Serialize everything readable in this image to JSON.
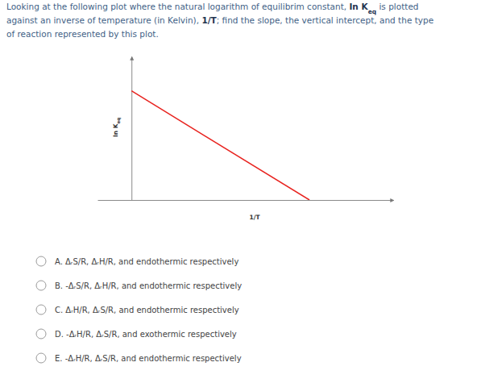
{
  "question": {
    "lines": [
      [
        {
          "text": "Looking at the following plot where the natural logarithm of equilibrim constant, ",
          "style": "normal"
        },
        {
          "text": "In K",
          "style": "bold"
        },
        {
          "text": "eq",
          "style": "bold-subscript"
        },
        {
          "text": " is plotted",
          "style": "normal"
        }
      ],
      [
        {
          "text": "against an inverse of temperature (in Kelvin), ",
          "style": "normal"
        },
        {
          "text": "1/T",
          "style": "bold"
        },
        {
          "text": "; find the slope, the vertical intercept, and the type",
          "style": "normal"
        }
      ],
      [
        {
          "text": "of reaction represented by this plot.",
          "style": "normal"
        }
      ]
    ]
  },
  "chart_data": {
    "type": "line",
    "xlabel": "1/T",
    "ylabel": {
      "text": "In K",
      "subscript": "eq"
    },
    "x": [
      0,
      6.8
    ],
    "values": [
      7.6,
      0
    ],
    "color": "#e8231f",
    "xlim": [
      -1.3,
      10
    ],
    "ylim": [
      0,
      10
    ],
    "grid": false,
    "tick_labels": false
  },
  "options": [
    "A. ΔᵣS/R, ΔᵣH/R, and endothermic respectively",
    "B. -ΔᵣS/R, ΔᵣH/R, and endothermic respectively",
    "C. ΔᵣH/R, ΔᵣS/R, and endothermic respectively",
    "D. -ΔᵣH/R, ΔᵣS/R, and exothermic respectively",
    "E. -ΔᵣH/R, ΔᵣS/R, and endothermic respectively"
  ]
}
